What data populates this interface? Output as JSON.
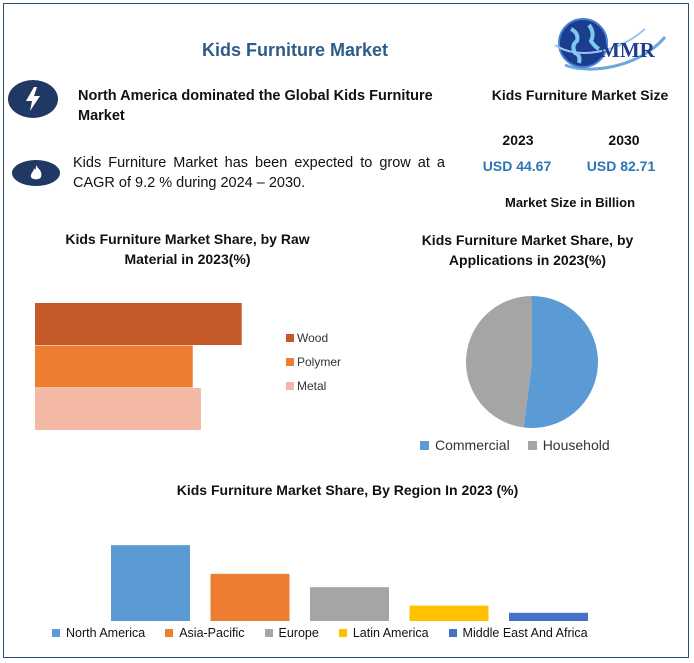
{
  "title": "Kids Furniture Market",
  "logo": {
    "text": "MMR",
    "icon": "globe-icon"
  },
  "headline": "North America dominated the Global Kids Furniture Market",
  "cagr_text": "Kids Furniture Market has been expected to grow at a CAGR of 9.2 % during 2024 – 2030.",
  "market_size": {
    "title": "Kids Furniture Market Size",
    "year1": "2023",
    "value1": "USD 44.67",
    "year2": "2030",
    "value2": "USD 82.71",
    "note": "Market Size in Billion"
  },
  "colors": {
    "title": "#2e5c8a",
    "badge": "#203864",
    "usd": "#2e75b6",
    "wood": "#c55a28",
    "polymer": "#ed7d31",
    "metal": "#f4b9a4",
    "commercial": "#5b9bd5",
    "household": "#a5a5a5",
    "north_america": "#5b9bd5",
    "asia_pacific": "#ed7d31",
    "europe": "#a5a5a5",
    "latin_america": "#ffc000",
    "mea": "#4472c4"
  },
  "chart_data": [
    {
      "type": "bar",
      "orientation": "horizontal",
      "title": "Kids Furniture Market Share, by Raw Material in 2023(%)",
      "series": [
        {
          "name": "Wood",
          "value": 38
        },
        {
          "name": "Polymer",
          "value": 29
        },
        {
          "name": "Metal",
          "value": 30.5
        }
      ],
      "xlim": [
        0,
        50
      ],
      "grid": false,
      "legend": "right"
    },
    {
      "type": "pie",
      "title": "Kids Furniture Market Share, by Applications in 2023(%)",
      "slices": [
        {
          "label": "Commercial",
          "value": 52
        },
        {
          "label": "Household",
          "value": 48
        }
      ],
      "legend": "bottom"
    },
    {
      "type": "bar",
      "title": "Kids Furniture Market Share, By Region In 2023 (%)",
      "series": [
        {
          "name": "North America",
          "value": 37
        },
        {
          "name": "Asia-Pacific",
          "value": 23
        },
        {
          "name": "Europe",
          "value": 16.5
        },
        {
          "name": "Latin America",
          "value": 7.5
        },
        {
          "name": "Middle East And Africa",
          "value": 4
        }
      ],
      "ylim": [
        0,
        40
      ],
      "grid": false,
      "legend": "bottom"
    }
  ]
}
